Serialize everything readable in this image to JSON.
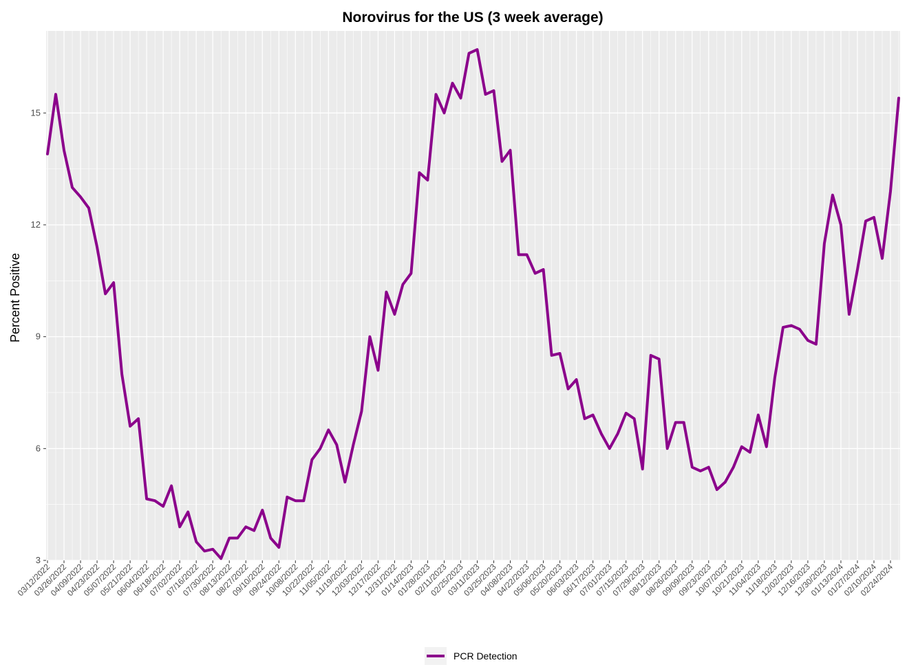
{
  "chart_data": {
    "type": "line",
    "title": "Norovirus for the US (3 week average)",
    "xlabel": "",
    "ylabel": "Percent Positive",
    "ylim": [
      3,
      17.2
    ],
    "yticks": [
      3,
      6,
      9,
      12,
      15
    ],
    "grid": true,
    "legend_position": "bottom",
    "x_tick_labels": [
      "03/12/2022",
      "03/26/2022",
      "04/09/2022",
      "04/23/2022",
      "05/07/2022",
      "05/21/2022",
      "06/04/2022",
      "06/18/2022",
      "07/02/2022",
      "07/16/2022",
      "07/30/2022",
      "08/13/2022",
      "08/27/2022",
      "09/10/2022",
      "09/24/2022",
      "10/08/2022",
      "10/22/2022",
      "11/05/2022",
      "11/19/2022",
      "12/03/2022",
      "12/17/2022",
      "12/31/2022",
      "01/14/2023",
      "01/28/2023",
      "02/11/2023",
      "02/25/2023",
      "03/11/2023",
      "03/25/2023",
      "04/08/2023",
      "04/22/2023",
      "05/06/2023",
      "05/20/2023",
      "06/03/2023",
      "06/17/2023",
      "07/01/2023",
      "07/15/2023",
      "07/29/2023",
      "08/12/2023",
      "08/26/2023",
      "09/09/2023",
      "09/23/2023",
      "10/07/2023",
      "10/21/2023",
      "11/04/2023",
      "11/18/2023",
      "12/02/2023",
      "12/16/2023",
      "12/30/2023",
      "01/13/2024",
      "01/27/2024",
      "02/10/2024",
      "02/24/2024"
    ],
    "series": [
      {
        "name": "PCR Detection",
        "color": "#8B008B",
        "x": [
          "03/12/2022",
          "03/19/2022",
          "03/26/2022",
          "04/02/2022",
          "04/09/2022",
          "04/16/2022",
          "04/23/2022",
          "04/30/2022",
          "05/07/2022",
          "05/14/2022",
          "05/21/2022",
          "05/28/2022",
          "06/04/2022",
          "06/11/2022",
          "06/18/2022",
          "06/25/2022",
          "07/02/2022",
          "07/09/2022",
          "07/16/2022",
          "07/23/2022",
          "07/30/2022",
          "08/06/2022",
          "08/13/2022",
          "08/20/2022",
          "08/27/2022",
          "09/03/2022",
          "09/10/2022",
          "09/17/2022",
          "09/24/2022",
          "10/01/2022",
          "10/08/2022",
          "10/15/2022",
          "10/22/2022",
          "10/29/2022",
          "11/05/2022",
          "11/12/2022",
          "11/19/2022",
          "11/26/2022",
          "12/03/2022",
          "12/10/2022",
          "12/17/2022",
          "12/24/2022",
          "12/31/2022",
          "01/07/2023",
          "01/14/2023",
          "01/21/2023",
          "01/28/2023",
          "02/04/2023",
          "02/11/2023",
          "02/18/2023",
          "02/25/2023",
          "03/04/2023",
          "03/11/2023",
          "03/18/2023",
          "03/25/2023",
          "04/01/2023",
          "04/08/2023",
          "04/15/2023",
          "04/22/2023",
          "04/29/2023",
          "05/06/2023",
          "05/13/2023",
          "05/20/2023",
          "05/27/2023",
          "06/03/2023",
          "06/10/2023",
          "06/17/2023",
          "06/24/2023",
          "07/01/2023",
          "07/08/2023",
          "07/15/2023",
          "07/22/2023",
          "07/29/2023",
          "08/05/2023",
          "08/12/2023",
          "08/19/2023",
          "08/26/2023",
          "09/02/2023",
          "09/09/2023",
          "09/16/2023",
          "09/23/2023",
          "09/30/2023",
          "10/07/2023",
          "10/14/2023",
          "10/21/2023",
          "10/28/2023",
          "11/04/2023",
          "11/11/2023",
          "11/18/2023",
          "11/25/2023",
          "12/02/2023",
          "12/09/2023",
          "12/16/2023",
          "12/23/2023",
          "12/30/2023",
          "01/06/2024",
          "01/13/2024",
          "01/20/2024",
          "01/27/2024",
          "02/03/2024",
          "02/10/2024",
          "02/17/2024",
          "02/24/2024",
          "03/02/2024"
        ],
        "values": [
          13.9,
          15.5,
          14.0,
          13.0,
          12.75,
          12.45,
          11.4,
          10.15,
          10.45,
          8.0,
          6.6,
          6.8,
          4.65,
          4.6,
          4.45,
          5.0,
          3.9,
          4.3,
          3.5,
          3.25,
          3.3,
          3.05,
          3.6,
          3.6,
          3.9,
          3.8,
          4.35,
          3.6,
          3.35,
          4.7,
          4.6,
          4.6,
          5.7,
          6.0,
          6.5,
          6.1,
          5.1,
          6.1,
          7.0,
          9.0,
          8.1,
          10.2,
          9.6,
          10.4,
          10.7,
          13.4,
          13.2,
          15.5,
          15.0,
          15.8,
          15.4,
          16.6,
          16.7,
          15.5,
          15.6,
          13.7,
          14.0,
          11.2,
          11.2,
          10.7,
          10.8,
          8.5,
          8.55,
          7.6,
          7.85,
          6.8,
          6.9,
          6.4,
          6.0,
          6.4,
          6.95,
          6.8,
          5.45,
          8.5,
          8.4,
          6.0,
          6.7,
          6.7,
          5.5,
          5.4,
          5.5,
          4.9,
          5.1,
          5.5,
          6.05,
          5.9,
          6.9,
          6.05,
          7.9,
          9.25,
          9.3,
          9.2,
          8.9,
          8.8,
          11.5,
          12.8,
          12.0,
          9.6,
          10.8,
          12.1,
          12.2,
          11.1,
          12.9,
          15.4
        ]
      }
    ]
  }
}
